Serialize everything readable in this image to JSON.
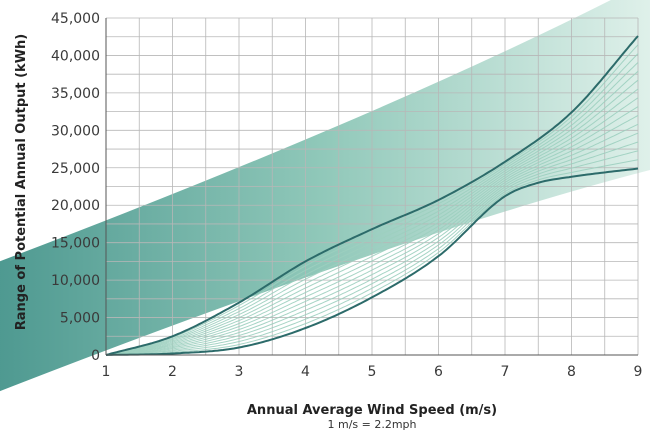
{
  "chart_data": {
    "type": "line",
    "title": "",
    "xlabel": "Annual Average Wind Speed (m/s)",
    "xlabel_note": "1 m/s = 2.2mph",
    "ylabel": "Range of Potential Annual Output (kWh)",
    "xlim": [
      1,
      9
    ],
    "ylim": [
      0,
      45000
    ],
    "x_ticks": [
      "1",
      "2",
      "3",
      "4",
      "5",
      "6",
      "7",
      "8",
      "9"
    ],
    "y_ticks": [
      "0",
      "5,000",
      "10,000",
      "15,000",
      "20,000",
      "25,000",
      "30,000",
      "35,000",
      "40,000",
      "45,000"
    ],
    "grid": true,
    "series": [
      {
        "role": "upper-envelope",
        "x": [
          1,
          2,
          3,
          4,
          5,
          6,
          7,
          8,
          9
        ],
        "values": [
          0,
          2500,
          7000,
          12500,
          16800,
          20700,
          25800,
          32400,
          42600
        ]
      },
      {
        "role": "lower-envelope",
        "x": [
          1,
          2,
          3,
          4,
          5,
          6,
          7,
          7.5,
          8,
          9
        ],
        "values": [
          0,
          200,
          1000,
          3600,
          7700,
          13200,
          21200,
          23000,
          23800,
          24900
        ]
      }
    ],
    "band_line_count": 14,
    "colors": {
      "envelope": "#2c6b6a",
      "band_lines": "#9ccfbf",
      "swoosh_dark": "#3d8f86",
      "swoosh_light": "#d8eee6",
      "grid": "#b7b7b7"
    }
  }
}
